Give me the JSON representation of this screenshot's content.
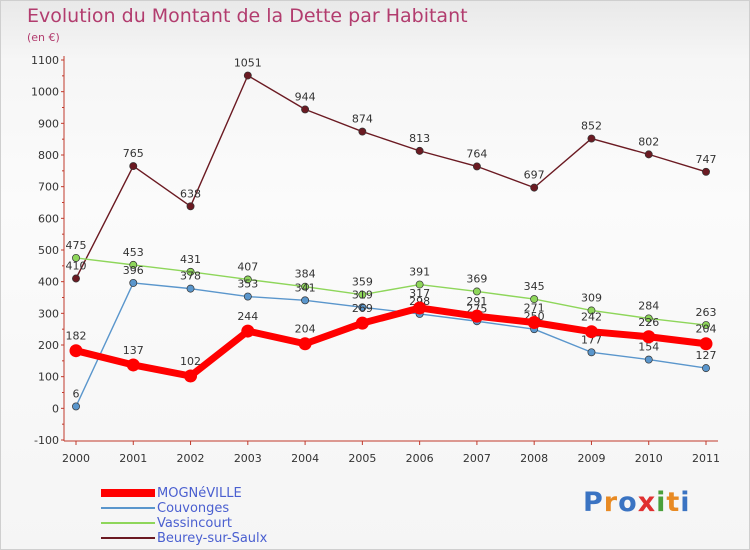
{
  "chart_title": "Evolution du Montant de la Dette par Habitant",
  "unit": "(en €)",
  "logo": {
    "text": "Proxiti",
    "colors": [
      "#3a73c2",
      "#e88a23",
      "#3a73c2",
      "#e03030",
      "#4aa03a",
      "#e88a23",
      "#3a73c2"
    ]
  },
  "chart_data": {
    "type": "line",
    "title": "Evolution du Montant de la Dette par Habitant",
    "ylabel": "(en €)",
    "xlabel": "",
    "x": [
      "2000",
      "2001",
      "2002",
      "2003",
      "2004",
      "2005",
      "2006",
      "2007",
      "2008",
      "2009",
      "2010",
      "2011"
    ],
    "ylim": [
      -100,
      1100
    ],
    "yticks": [
      -100,
      0,
      100,
      200,
      300,
      400,
      500,
      600,
      700,
      800,
      900,
      1000,
      1100
    ],
    "grid": false,
    "legend_position": "bottom-left",
    "series": [
      {
        "name": "Beurey-sur-Saulx",
        "color": "#6b1a22",
        "values": [
          410,
          765,
          638,
          1051,
          944,
          874,
          813,
          764,
          697,
          852,
          802,
          747
        ]
      },
      {
        "name": "Vassincourt",
        "color": "#8ed65a",
        "values": [
          475,
          453,
          431,
          407,
          384,
          359,
          391,
          369,
          345,
          309,
          284,
          263
        ]
      },
      {
        "name": "Couvonges",
        "color": "#5a96cc",
        "values": [
          6,
          396,
          378,
          353,
          341,
          319,
          298,
          275,
          250,
          177,
          154,
          127
        ]
      },
      {
        "name": "MOGNéVILLE",
        "color": "#ff0000",
        "values": [
          182,
          137,
          102,
          244,
          204,
          269,
          317,
          291,
          271,
          242,
          226,
          204
        ]
      }
    ]
  },
  "legend": [
    {
      "name": "MOGNéVILLE",
      "color": "#ff0000"
    },
    {
      "name": "Couvonges",
      "color": "#5a96cc"
    },
    {
      "name": "Vassincourt",
      "color": "#8ed65a"
    },
    {
      "name": "Beurey-sur-Saulx",
      "color": "#6b1a22"
    }
  ]
}
